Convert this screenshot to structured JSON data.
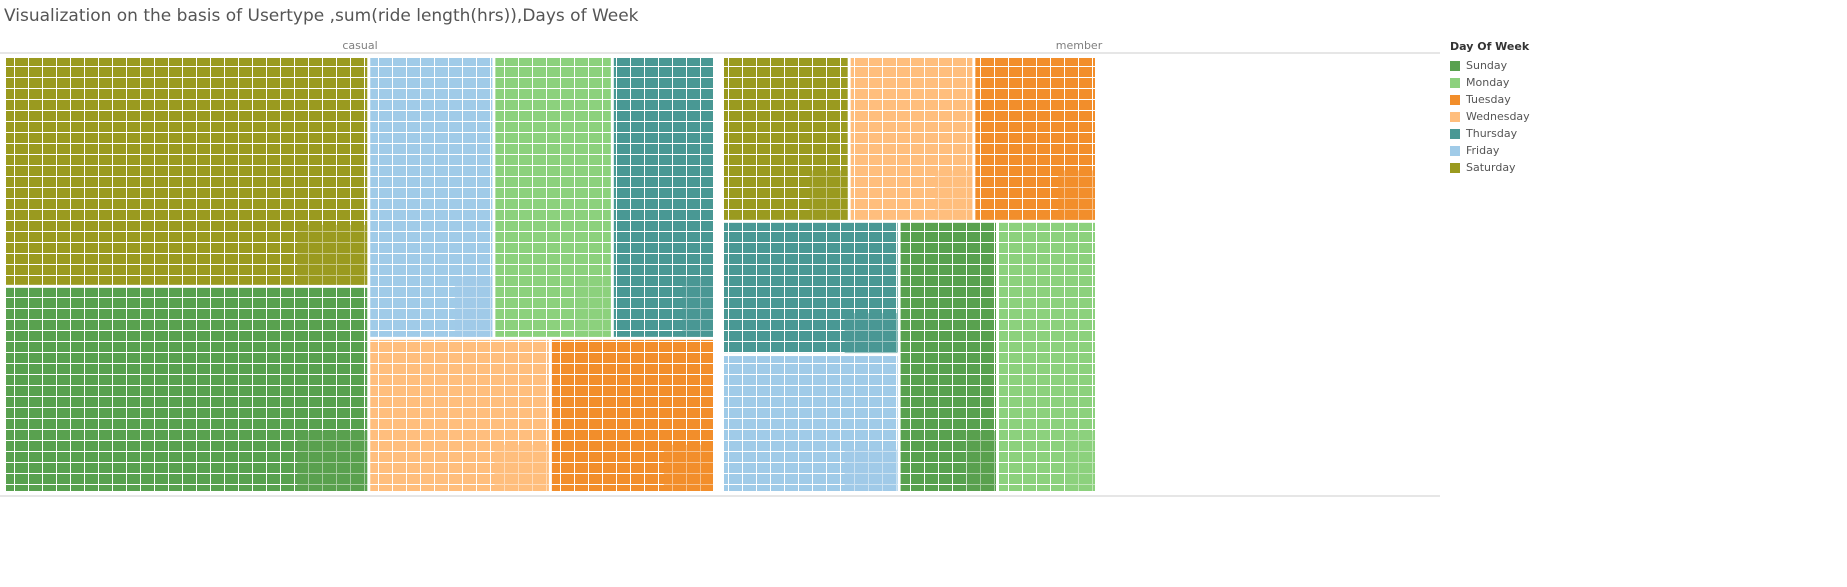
{
  "title": "Visualization on the basis of  Usertype ,sum(ride length(hrs)),Days of Week",
  "colors": {
    "Sunday": "#59a14f",
    "Monday": "#8cd17d",
    "Tuesday": "#f28e2b",
    "Wednesday": "#ffbe7d",
    "Thursday": "#499894",
    "Friday": "#a0cbe8",
    "Saturday": "#9a9a1f"
  },
  "chart_data": {
    "type": "treemap",
    "title": "Visualization on the basis of  Usertype ,sum(ride length(hrs)),Days of Week",
    "measure": "sum(ride length(hrs))",
    "panels": [
      {
        "name": "casual",
        "tiles": [
          {
            "day": "Saturday",
            "value": 31.1
          },
          {
            "day": "Sunday",
            "value": 27.9
          },
          {
            "day": "Friday",
            "value": 13.1
          },
          {
            "day": "Monday",
            "value": 12.4
          },
          {
            "day": "Thursday",
            "value": 10.7
          },
          {
            "day": "Wednesday",
            "value": 10.4
          },
          {
            "day": "Tuesday",
            "value": 9.4
          }
        ]
      },
      {
        "name": "member",
        "tiles": [
          {
            "day": "Saturday",
            "value": 12.6
          },
          {
            "day": "Wednesday",
            "value": 12.4
          },
          {
            "day": "Tuesday",
            "value": 12.2
          },
          {
            "day": "Thursday",
            "value": 14.2
          },
          {
            "day": "Friday",
            "value": 14.7
          },
          {
            "day": "Sunday",
            "value": 16.1
          },
          {
            "day": "Monday",
            "value": 16.2
          }
        ]
      }
    ]
  },
  "legend": {
    "title": "Day Of Week",
    "items": [
      "Sunday",
      "Monday",
      "Tuesday",
      "Wednesday",
      "Thursday",
      "Friday",
      "Saturday"
    ]
  }
}
